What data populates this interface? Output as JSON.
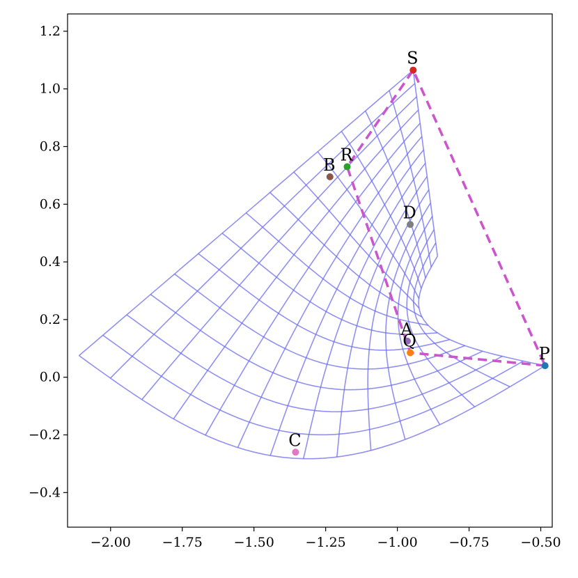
{
  "chart_data": {
    "type": "scatter",
    "title": "",
    "xlabel": "",
    "ylabel": "",
    "xlim": [
      -2.15,
      -0.46
    ],
    "ylim": [
      -0.52,
      1.26
    ],
    "xticks": [
      -2.0,
      -1.75,
      -1.5,
      -1.25,
      -1.0,
      -0.75,
      -0.5
    ],
    "xtick_labels": [
      "−2.00",
      "−1.75",
      "−1.50",
      "−1.25",
      "−1.00",
      "−0.75",
      "−0.50"
    ],
    "yticks": [
      -0.4,
      -0.2,
      0.0,
      0.2,
      0.4,
      0.6,
      0.8,
      1.0,
      1.2
    ],
    "ytick_labels": [
      "−0.4",
      "−0.2",
      "0.0",
      "0.2",
      "0.4",
      "0.6",
      "0.8",
      "1.0",
      "1.2"
    ],
    "grid": false,
    "points": [
      {
        "label": "S",
        "x": -0.945,
        "y": 1.065,
        "color": "#d62728"
      },
      {
        "label": "R",
        "x": -1.175,
        "y": 0.73,
        "color": "#2ca02c"
      },
      {
        "label": "B",
        "x": -1.235,
        "y": 0.695,
        "color": "#8c564b"
      },
      {
        "label": "D",
        "x": -0.955,
        "y": 0.53,
        "color": "#7f7f7f"
      },
      {
        "label": "A",
        "x": -0.965,
        "y": 0.125,
        "color": "#9467bd"
      },
      {
        "label": "Q",
        "x": -0.955,
        "y": 0.085,
        "color": "#ff7f0e"
      },
      {
        "label": "P",
        "x": -0.485,
        "y": 0.04,
        "color": "#1f77b4"
      },
      {
        "label": "C",
        "x": -1.355,
        "y": -0.26,
        "color": "#e377c2"
      }
    ],
    "polygon": {
      "vertices": [
        "P",
        "Q",
        "R",
        "S"
      ],
      "color": "#cc55cc",
      "style": "dashed"
    },
    "warped_grid": {
      "color": "#6b6bef",
      "corners": {
        "near_left": {
          "x": -2.11,
          "y": 0.075
        },
        "near_right": {
          "x": -0.485,
          "y": 0.04
        },
        "far_top": {
          "x": -0.945,
          "y": 1.065
        },
        "far_inner": {
          "x": -0.86,
          "y": 0.42
        }
      }
    }
  }
}
